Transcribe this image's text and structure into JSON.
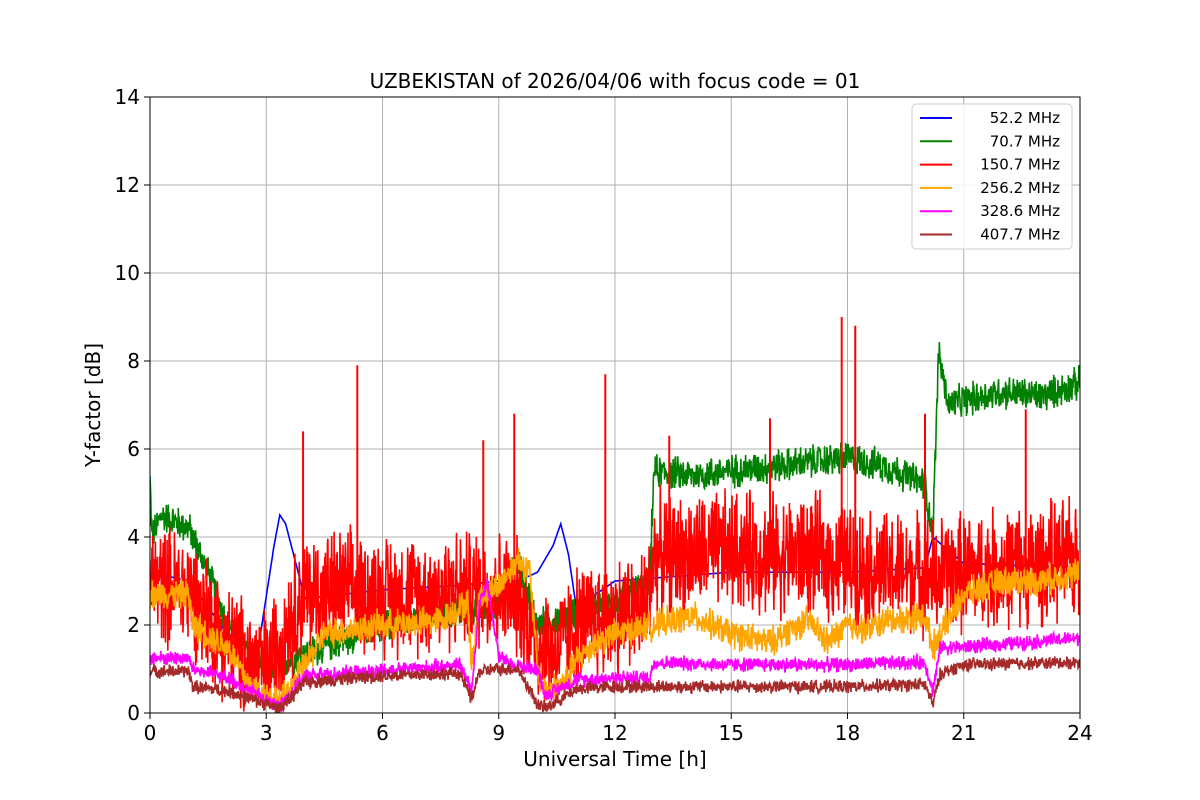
{
  "chart_data": {
    "type": "line",
    "title": "UZBEKISTAN of 2026/04/06 with focus code = 01",
    "xlabel": "Universal Time [h]",
    "ylabel": "Y-factor [dB]",
    "xlim": [
      0,
      24
    ],
    "ylim": [
      0,
      14
    ],
    "xticks": [
      0,
      3,
      6,
      9,
      12,
      15,
      18,
      21,
      24
    ],
    "yticks": [
      0,
      2,
      4,
      6,
      8,
      10,
      12,
      14
    ],
    "grid": true,
    "legend_position": "top-right",
    "series": [
      {
        "name": "52.2 MHz",
        "color": "#0000ff",
        "x": [
          0,
          1,
          2,
          2.8,
          3.2,
          3.35,
          3.5,
          4,
          6,
          8,
          9,
          9.5,
          10,
          10.4,
          10.6,
          10.8,
          11,
          12,
          15,
          18,
          20,
          20.2,
          21,
          24
        ],
        "y": [
          3.2,
          3.0,
          1.8,
          1.5,
          3.8,
          4.5,
          4.3,
          2.6,
          2.8,
          2.9,
          3.0,
          3.0,
          3.2,
          3.8,
          4.3,
          3.6,
          2.4,
          3.0,
          3.2,
          3.2,
          3.3,
          4.0,
          3.4,
          3.3
        ]
      },
      {
        "name": "70.7 MHz",
        "color": "#008000",
        "x": [
          0,
          0.05,
          0.3,
          1,
          1.5,
          2,
          3,
          6,
          9,
          9.5,
          10,
          12,
          12.9,
          13,
          14,
          15,
          16,
          17,
          18,
          19,
          20,
          20.2,
          20.35,
          20.6,
          21,
          22,
          23,
          24
        ],
        "y": [
          5.3,
          4.0,
          4.5,
          4.2,
          3.2,
          2.0,
          1.0,
          2.0,
          2.5,
          3.5,
          2.0,
          2.5,
          3.0,
          5.5,
          5.4,
          5.5,
          5.6,
          5.7,
          5.8,
          5.6,
          5.2,
          4.0,
          8.2,
          7.0,
          7.1,
          7.3,
          7.2,
          7.5
        ],
        "noise": 0.45
      },
      {
        "name": "150.7 MHz",
        "color": "#ff0000",
        "x": [
          0,
          1,
          1.5,
          2,
          2.5,
          3,
          3.5,
          4,
          5,
          6,
          7,
          8,
          9,
          9.5,
          10,
          10.5,
          11,
          12,
          12.8,
          13,
          14,
          15,
          16,
          17,
          18,
          19,
          20,
          20.3,
          20.5,
          21,
          22,
          23,
          24
        ],
        "y": [
          3.0,
          2.8,
          2.2,
          1.6,
          1.2,
          1.0,
          2.0,
          2.7,
          2.8,
          2.7,
          2.7,
          2.8,
          2.8,
          2.6,
          1.6,
          1.4,
          2.0,
          2.2,
          2.4,
          3.6,
          3.6,
          3.7,
          3.6,
          3.6,
          3.4,
          3.2,
          3.2,
          3.0,
          3.2,
          3.2,
          3.3,
          3.4,
          3.5
        ],
        "noise": 1.6,
        "spikes": [
          [
            3.95,
            6.4
          ],
          [
            5.35,
            7.9
          ],
          [
            8.6,
            6.2
          ],
          [
            9.4,
            6.8
          ],
          [
            11.75,
            7.7
          ],
          [
            13.4,
            6.3
          ],
          [
            16.0,
            6.7
          ],
          [
            17.85,
            9.0
          ],
          [
            18.2,
            8.8
          ],
          [
            20.0,
            6.8
          ],
          [
            22.6,
            6.9
          ]
        ]
      },
      {
        "name": "256.2 MHz",
        "color": "#ffa500",
        "x": [
          0,
          1,
          1.1,
          2,
          2.6,
          3,
          3.4,
          3.8,
          4.5,
          6,
          7.5,
          8,
          8.2,
          8.3,
          8.5,
          9,
          9.5,
          9.8,
          10,
          10.2,
          10.7,
          11,
          11.5,
          12,
          13,
          14,
          15,
          16,
          16.5,
          17,
          17.5,
          18,
          18.5,
          19,
          20,
          20.2,
          20.4,
          21,
          22,
          23,
          24
        ],
        "y": [
          2.7,
          2.7,
          2.0,
          1.5,
          0.6,
          0.4,
          0.3,
          0.8,
          1.8,
          2.0,
          2.1,
          2.4,
          2.5,
          1.0,
          2.6,
          2.9,
          3.5,
          3.2,
          1.0,
          0.5,
          0.7,
          1.2,
          1.6,
          1.8,
          2.0,
          2.2,
          1.8,
          1.6,
          1.9,
          2.1,
          1.6,
          2.0,
          1.9,
          2.1,
          2.2,
          1.5,
          1.8,
          2.7,
          3.0,
          3.0,
          3.2
        ],
        "noise": 0.4
      },
      {
        "name": "328.6 MHz",
        "color": "#ff00ff",
        "x": [
          0,
          1,
          1.1,
          2,
          3,
          3.3,
          3.6,
          4,
          6,
          8,
          8.3,
          8.5,
          8.7,
          9,
          9.3,
          10,
          10.2,
          11,
          12,
          12.9,
          13,
          15,
          18,
          20,
          20.2,
          20.4,
          21,
          24
        ],
        "y": [
          1.25,
          1.25,
          1.0,
          0.8,
          0.3,
          0.15,
          0.4,
          0.85,
          0.95,
          1.1,
          0.5,
          2.5,
          3.0,
          1.3,
          1.1,
          1.0,
          0.4,
          0.75,
          0.8,
          0.8,
          1.15,
          1.1,
          1.1,
          1.15,
          0.5,
          1.5,
          1.5,
          1.7
        ],
        "noise": 0.2
      },
      {
        "name": "407.7 MHz",
        "color": "#a52a2a",
        "x": [
          0,
          1,
          1.1,
          2,
          3,
          3.3,
          3.6,
          4,
          6,
          8,
          8.3,
          8.5,
          9,
          9.5,
          10,
          10.2,
          11,
          12,
          15,
          18,
          20,
          20.2,
          20.4,
          21,
          24
        ],
        "y": [
          0.95,
          0.95,
          0.6,
          0.5,
          0.2,
          0.1,
          0.3,
          0.7,
          0.85,
          0.9,
          0.3,
          0.95,
          1.0,
          1.0,
          0.2,
          0.1,
          0.55,
          0.6,
          0.6,
          0.6,
          0.65,
          0.2,
          0.9,
          1.1,
          1.15
        ],
        "noise": 0.18
      }
    ]
  }
}
